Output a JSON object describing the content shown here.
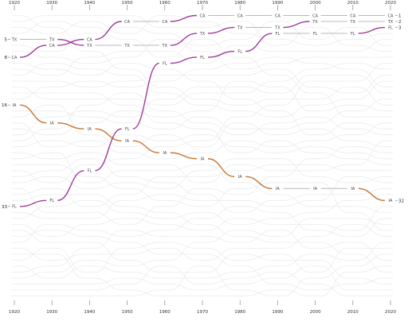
{
  "chart_data": {
    "type": "line",
    "subtype": "bump",
    "x": [
      1920,
      1930,
      1940,
      1950,
      1960,
      1970,
      1980,
      1990,
      2000,
      2010,
      2020
    ],
    "x_tick_labels": [
      "1920",
      "1930",
      "1940",
      "1950",
      "1960",
      "1970",
      "1980",
      "1990",
      "2000",
      "2010",
      "2020"
    ],
    "y_inverted": true,
    "ylim": [
      1,
      48
    ],
    "highlighted_series": [
      {
        "name": "CA",
        "color": "#8e1a8a",
        "ranks": [
          8,
          6,
          5,
          2,
          2,
          1,
          1,
          1,
          1,
          1,
          1
        ],
        "start_label": "8",
        "end_label": "1"
      },
      {
        "name": "TX",
        "color": "#8e1a8a",
        "ranks": [
          5,
          5,
          6,
          6,
          6,
          4,
          3,
          3,
          2,
          2,
          2
        ],
        "start_label": "5",
        "end_label": "2"
      },
      {
        "name": "FL",
        "color": "#8e1a8a",
        "ranks": [
          33,
          32,
          27,
          20,
          9,
          8,
          7,
          4,
          4,
          4,
          3
        ],
        "start_label": "33",
        "end_label": "3"
      },
      {
        "name": "IA",
        "color": "#c05b0c",
        "ranks": [
          16,
          19,
          20,
          22,
          24,
          25,
          28,
          30,
          30,
          30,
          32
        ],
        "start_label": "16",
        "end_label": "32"
      }
    ],
    "background_series_count": 44,
    "grid": false,
    "legend": "none"
  }
}
